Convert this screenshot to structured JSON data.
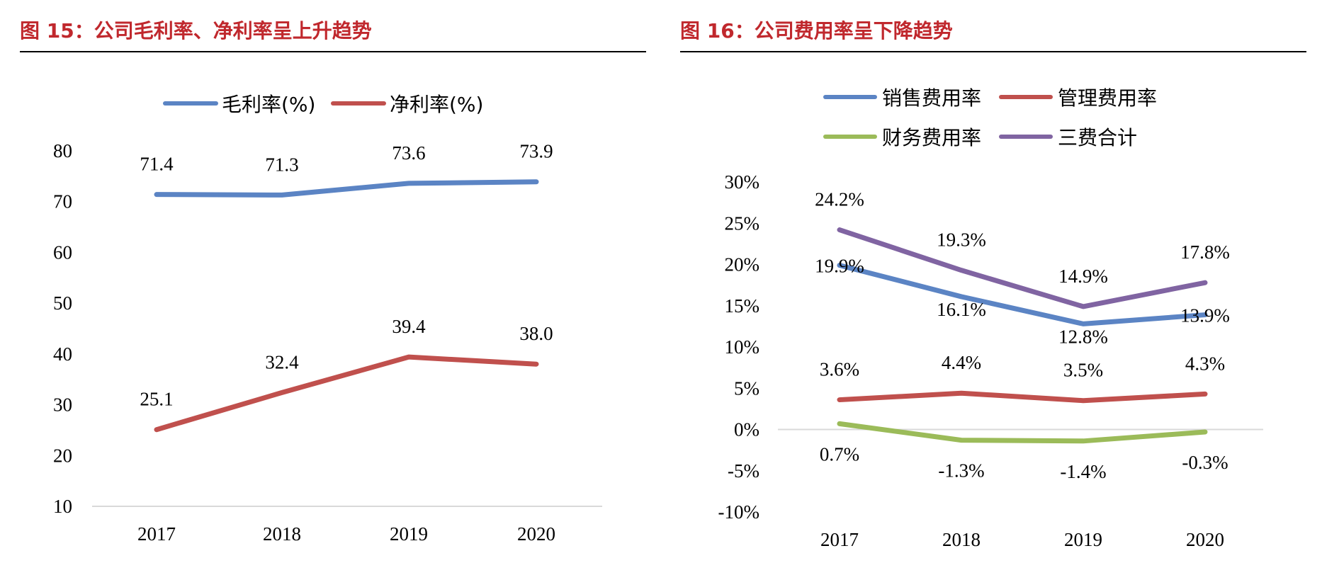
{
  "figures": [
    {
      "label": "图 15",
      "caption": "图 15：公司毛利率、净利率呈上升趋势"
    },
    {
      "label": "图 16",
      "caption": "图 16：公司费用率呈下降趋势"
    }
  ],
  "colors": {
    "title": "#c0282d",
    "blue": "#5b84c4",
    "red": "#c0504d",
    "green": "#9bbb59",
    "purple": "#8064a2",
    "axis": "#d9d9d9"
  },
  "chart_data": [
    {
      "type": "line",
      "title": "图 15：公司毛利率、净利率呈上升趋势",
      "categories": [
        "2017",
        "2018",
        "2019",
        "2020"
      ],
      "ylim": [
        10,
        80
      ],
      "yticks": [
        80,
        70,
        60,
        50,
        40,
        30,
        20,
        10
      ],
      "xlabel": "",
      "ylabel": "",
      "legend_position": "top",
      "series": [
        {
          "name": "毛利率(%)",
          "color": "#5b84c4",
          "values": [
            71.4,
            71.3,
            73.6,
            73.9
          ],
          "labels": [
            "71.4",
            "71.3",
            "73.6",
            "73.9"
          ]
        },
        {
          "name": "净利率(%)",
          "color": "#c0504d",
          "values": [
            25.1,
            32.4,
            39.4,
            38.0
          ],
          "labels": [
            "25.1",
            "32.4",
            "39.4",
            "38.0"
          ]
        }
      ]
    },
    {
      "type": "line",
      "title": "图 16：公司费用率呈下降趋势",
      "categories": [
        "2017",
        "2018",
        "2019",
        "2020"
      ],
      "ylim": [
        -10,
        30
      ],
      "yticks": [
        "30%",
        "25%",
        "20%",
        "15%",
        "10%",
        "5%",
        "0%",
        "-5%",
        "-10%"
      ],
      "ytick_values": [
        30,
        25,
        20,
        15,
        10,
        5,
        0,
        -5,
        -10
      ],
      "xlabel": "",
      "ylabel": "",
      "legend_position": "top",
      "series": [
        {
          "name": "销售费用率",
          "color": "#5b84c4",
          "values": [
            19.9,
            16.1,
            12.8,
            13.9
          ],
          "labels": [
            "19.9%",
            "16.1%",
            "12.8%",
            "13.9%"
          ]
        },
        {
          "name": "管理费用率",
          "color": "#c0504d",
          "values": [
            3.6,
            4.4,
            3.5,
            4.3
          ],
          "labels": [
            "3.6%",
            "4.4%",
            "3.5%",
            "4.3%"
          ]
        },
        {
          "name": "财务费用率",
          "color": "#9bbb59",
          "values": [
            0.7,
            -1.3,
            -1.4,
            -0.3
          ],
          "labels": [
            "0.7%",
            "-1.3%",
            "-1.4%",
            "-0.3%"
          ]
        },
        {
          "name": "三费合计",
          "color": "#8064a2",
          "values": [
            24.2,
            19.3,
            14.9,
            17.8
          ],
          "labels": [
            "24.2%",
            "19.3%",
            "14.9%",
            "17.8%"
          ]
        }
      ]
    }
  ]
}
